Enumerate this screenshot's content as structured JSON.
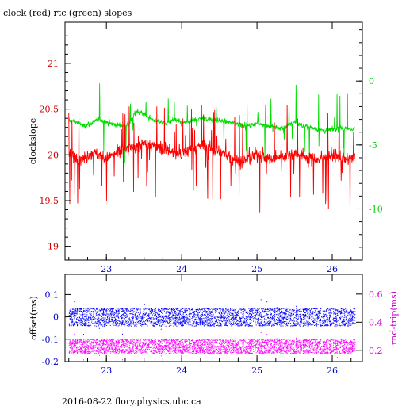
{
  "chart_data": [
    {
      "type": "line",
      "title": "clock (red) rtc (green) slopes",
      "xlabel": "",
      "ylabel_left": "clockslope",
      "ylabel_right": "",
      "xlim": [
        22.45,
        26.4
      ],
      "ylim_left": [
        18.85,
        21.45
      ],
      "ylim_right": [
        -14.0,
        4.6
      ],
      "x_ticks": [
        23,
        24,
        25,
        26
      ],
      "y_ticks_left": [
        19,
        19.5,
        20,
        20.5,
        21
      ],
      "y_ticks_right": [
        -10,
        -5,
        0
      ],
      "colors": {
        "clock": "#ff0000",
        "rtc": "#00dd00",
        "left_axis": "#cc0000",
        "right_axis": "#00cc00"
      },
      "series": [
        {
          "axis": "left",
          "color": "#ff0000",
          "x": [
            22.5,
            22.6,
            22.7,
            22.8,
            22.9,
            23.0,
            23.1,
            23.2,
            23.3,
            23.4,
            23.5,
            23.6,
            23.7,
            23.8,
            23.9,
            24.0,
            24.1,
            24.2,
            24.3,
            24.4,
            24.5,
            24.6,
            24.7,
            24.8,
            24.9,
            25.0,
            25.1,
            25.2,
            25.3,
            25.4,
            25.5,
            25.6,
            25.7,
            25.8,
            25.9,
            26.0,
            26.1,
            26.2,
            26.3
          ],
          "y": [
            20.0,
            19.98,
            19.96,
            20.02,
            20.0,
            19.97,
            20.0,
            20.05,
            20.06,
            20.1,
            20.12,
            20.1,
            20.08,
            20.05,
            20.02,
            20.0,
            20.05,
            20.08,
            20.1,
            20.06,
            20.03,
            20.0,
            19.95,
            19.93,
            19.96,
            20.0,
            19.97,
            19.95,
            19.98,
            20.0,
            20.02,
            20.0,
            19.97,
            19.95,
            19.98,
            20.0,
            19.97,
            19.95,
            19.97
          ]
        },
        {
          "axis": "right",
          "color": "#00dd00",
          "x": [
            22.5,
            22.6,
            22.7,
            22.8,
            22.9,
            23.0,
            23.1,
            23.2,
            23.3,
            23.4,
            23.5,
            23.6,
            23.7,
            23.8,
            23.9,
            24.0,
            24.1,
            24.2,
            24.3,
            24.4,
            24.5,
            24.6,
            24.7,
            24.8,
            24.9,
            25.0,
            25.1,
            25.2,
            25.3,
            25.4,
            25.5,
            25.6,
            25.7,
            25.8,
            25.9,
            26.0,
            26.1,
            26.2,
            26.3
          ],
          "y": [
            -3.1,
            -3.2,
            -3.5,
            -3.3,
            -3.0,
            -3.2,
            -3.4,
            -3.5,
            -3.4,
            -2.3,
            -2.6,
            -3.0,
            -3.2,
            -3.3,
            -3.0,
            -3.3,
            -3.2,
            -3.0,
            -2.9,
            -3.0,
            -3.1,
            -3.2,
            -3.3,
            -3.4,
            -3.5,
            -3.3,
            -3.4,
            -3.6,
            -3.7,
            -3.5,
            -3.2,
            -3.5,
            -3.6,
            -3.8,
            -3.9,
            -3.8,
            -3.7,
            -3.8,
            -3.7
          ]
        }
      ]
    },
    {
      "type": "scatter",
      "title": "",
      "xlabel": "",
      "ylabel_left": "offset(ms)",
      "ylabel_right": "rnd-trip(ms)",
      "xlim": [
        22.45,
        26.4
      ],
      "ylim_left": [
        -0.2,
        0.19
      ],
      "ylim_right": [
        0.12,
        0.74
      ],
      "x_ticks": [
        23,
        24,
        25,
        26
      ],
      "y_ticks_left": [
        -0.2,
        -0.1,
        0,
        0.1
      ],
      "y_ticks_right": [
        0.2,
        0.4,
        0.6
      ],
      "colors": {
        "offset": "#0000ff",
        "rndtrip": "#ff00ff",
        "left_axis": "#0000cc",
        "right_axis": "#cc00cc"
      },
      "series": [
        {
          "axis": "left",
          "color": "#0000ff",
          "center": 0.0,
          "spread": 0.04,
          "x_range": [
            22.5,
            26.3
          ]
        },
        {
          "axis": "right",
          "color": "#ff00ff",
          "center": 0.23,
          "spread": 0.05,
          "x_range": [
            22.5,
            26.3
          ]
        }
      ]
    }
  ],
  "footer": "2016-08-22 flory.physics.ubc.ca"
}
